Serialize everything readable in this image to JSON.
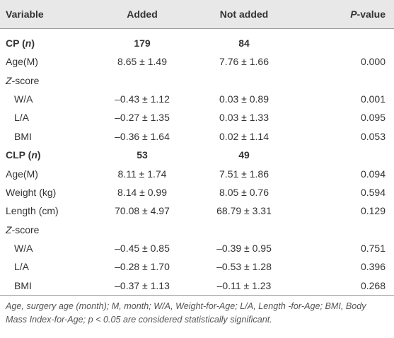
{
  "table": {
    "header": [
      "Variable",
      "Added",
      "Not added",
      [
        {
          "text": "P",
          "italic": true
        },
        {
          "text": "-value"
        }
      ]
    ],
    "rows": [
      {
        "bold": true,
        "cells": [
          [
            {
              "text": "CP ("
            },
            {
              "text": "n",
              "italic": true
            },
            {
              "text": ")"
            }
          ],
          "179",
          "84"
        ]
      },
      {
        "cells": [
          "Age(M)",
          "8.65 ± 1.49",
          "7.76 ± 1.66",
          "0.000"
        ]
      },
      {
        "cells": [
          [
            {
              "text": "Z",
              "italic": true
            },
            {
              "text": "-score"
            }
          ]
        ]
      },
      {
        "indent": true,
        "cells": [
          "W/A",
          "–0.43 ± 1.12",
          "0.03 ± 0.89",
          "0.001"
        ]
      },
      {
        "indent": true,
        "cells": [
          "L/A",
          "–0.27 ± 1.35",
          "0.03 ± 1.33",
          "0.095"
        ]
      },
      {
        "indent": true,
        "cells": [
          "BMI",
          "–0.36 ± 1.64",
          "0.02 ± 1.14",
          "0.053"
        ]
      },
      {
        "bold": true,
        "cells": [
          [
            {
              "text": "CLP ("
            },
            {
              "text": "n",
              "italic": true
            },
            {
              "text": ")"
            }
          ],
          "53",
          "49"
        ]
      },
      {
        "cells": [
          "Age(M)",
          "8.11 ± 1.74",
          "7.51 ± 1.86",
          "0.094"
        ]
      },
      {
        "cells": [
          "Weight (kg)",
          "8.14 ± 0.99",
          "8.05 ± 0.76",
          "0.594"
        ]
      },
      {
        "cells": [
          "Length (cm)",
          "70.08 ± 4.97",
          "68.79 ± 3.31",
          "0.129"
        ]
      },
      {
        "cells": [
          [
            {
              "text": "Z",
              "italic": true
            },
            {
              "text": "-score"
            }
          ]
        ]
      },
      {
        "indent": true,
        "cells": [
          "W/A",
          "–0.45 ± 0.85",
          "–0.39 ± 0.95",
          "0.751"
        ]
      },
      {
        "indent": true,
        "cells": [
          "L/A",
          "–0.28 ± 1.70",
          "–0.53 ± 1.28",
          "0.396"
        ]
      },
      {
        "indent": true,
        "cells": [
          "BMI",
          "–0.37 ± 1.13",
          "–0.11 ± 1.23",
          "0.268"
        ]
      }
    ],
    "footnote": "Age, surgery age (month); M, month; W/A, Weight-for-Age; L/A, Length -for-Age; BMI, Body Mass Index-for-Age; p < 0.05 are considered statistically significant."
  }
}
